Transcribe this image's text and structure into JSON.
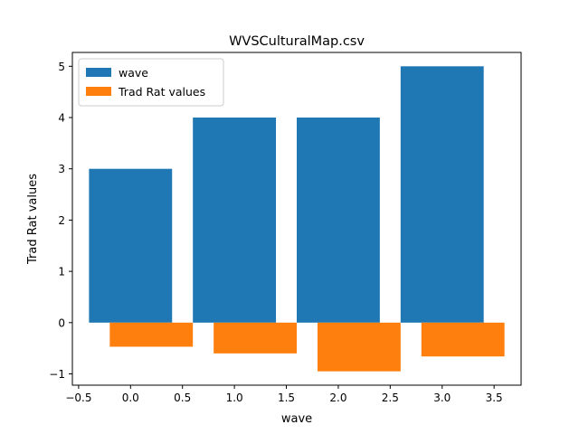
{
  "chart_data": {
    "type": "bar",
    "title": "WVSCulturalMap.csv",
    "xlabel": "wave",
    "ylabel": "Trad Rat values",
    "xlim": [
      -0.56,
      3.76
    ],
    "ylim": [
      -1.22,
      5.27
    ],
    "xticks": [
      -0.5,
      0.0,
      0.5,
      1.0,
      1.5,
      2.0,
      2.5,
      3.0,
      3.5
    ],
    "xtick_labels": [
      "−0.5",
      "0.0",
      "0.5",
      "1.0",
      "1.5",
      "2.0",
      "2.5",
      "3.0",
      "3.5"
    ],
    "yticks": [
      -1,
      0,
      1,
      2,
      3,
      4,
      5
    ],
    "ytick_labels": [
      "−1",
      "0",
      "1",
      "2",
      "3",
      "4",
      "5"
    ],
    "bar_width": 0.8,
    "grid": false,
    "legend_position": "top-left",
    "series": [
      {
        "name": "wave",
        "color": "#1f77b4",
        "x": [
          0,
          1,
          2,
          3
        ],
        "values": [
          3,
          4,
          4,
          5
        ]
      },
      {
        "name": "Trad Rat values",
        "color": "#ff7f0e",
        "x": [
          0.2,
          1.2,
          2.2,
          3.2
        ],
        "values": [
          -0.47,
          -0.6,
          -0.95,
          -0.66
        ]
      }
    ]
  }
}
